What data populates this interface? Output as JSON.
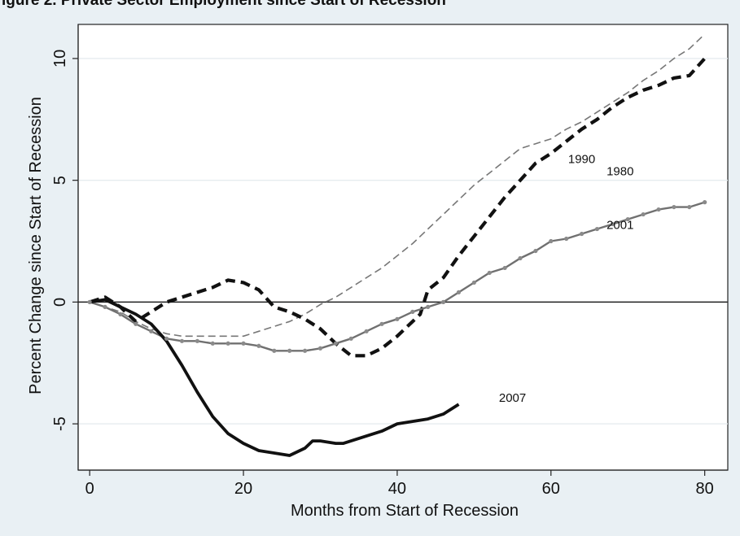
{
  "page": {
    "caption_fragment": "igure 2. Private Sector Employment since Start of Recession"
  },
  "chart_data": {
    "type": "line",
    "title": "",
    "xlabel": "Months from Start of Recession",
    "ylabel": "Percent Change since Start of Recession",
    "xlim": [
      -1.5,
      83
    ],
    "ylim": [
      -6.9,
      11.4
    ],
    "xticks": [
      0,
      20,
      40,
      60,
      80
    ],
    "xtick_labels": [
      "0",
      "20",
      "40",
      "60",
      "80"
    ],
    "yticks": [
      -5,
      0,
      5,
      10
    ],
    "ytick_labels": [
      "-5",
      "0",
      "5",
      "10"
    ],
    "grid": true,
    "legend": "none",
    "reference_line": {
      "y": 0
    },
    "series": [
      {
        "name": "1990",
        "color": "#777777",
        "style": "thin-dashed",
        "label_at": [
          64,
          5.7
        ],
        "x": [
          0,
          2,
          4,
          6,
          8,
          10,
          12,
          14,
          16,
          18,
          20,
          22,
          24,
          26,
          28,
          30,
          32,
          34,
          36,
          38,
          40,
          42,
          44,
          46,
          48,
          50,
          52,
          54,
          56,
          58,
          60,
          62,
          64,
          66,
          68,
          70,
          72,
          74,
          76,
          78,
          80
        ],
        "y": [
          0,
          -0.2,
          -0.4,
          -0.8,
          -1.1,
          -1.3,
          -1.4,
          -1.4,
          -1.4,
          -1.4,
          -1.4,
          -1.2,
          -1.0,
          -0.8,
          -0.5,
          -0.1,
          0.2,
          0.6,
          1.0,
          1.4,
          1.9,
          2.4,
          3.0,
          3.6,
          4.2,
          4.8,
          5.3,
          5.8,
          6.3,
          6.5,
          6.7,
          7.1,
          7.4,
          7.8,
          8.2,
          8.6,
          9.1,
          9.5,
          10.0,
          10.4,
          11.0
        ]
      },
      {
        "name": "1980",
        "color": "#111111",
        "style": "thick-dashed",
        "label_at": [
          69,
          5.2
        ],
        "x": [
          0,
          2,
          4,
          6,
          8,
          10,
          12,
          14,
          16,
          18,
          20,
          22,
          24,
          26,
          28,
          30,
          32,
          34,
          36,
          38,
          40,
          42,
          43,
          44,
          46,
          48,
          50,
          52,
          54,
          56,
          58,
          60,
          62,
          64,
          66,
          68,
          70,
          72,
          74,
          76,
          78,
          80
        ],
        "y": [
          0,
          0.2,
          -0.2,
          -0.8,
          -0.4,
          0.0,
          0.2,
          0.4,
          0.6,
          0.9,
          0.8,
          0.5,
          -0.2,
          -0.4,
          -0.7,
          -1.1,
          -1.7,
          -2.2,
          -2.2,
          -1.9,
          -1.4,
          -0.8,
          -0.5,
          0.5,
          1.0,
          1.9,
          2.7,
          3.5,
          4.3,
          5.0,
          5.7,
          6.1,
          6.6,
          7.1,
          7.5,
          8.0,
          8.4,
          8.7,
          8.9,
          9.2,
          9.3,
          10.0
        ]
      },
      {
        "name": "2001",
        "color": "#707070",
        "style": "dotted-markers",
        "label_at": [
          69,
          3.0
        ],
        "x": [
          0,
          2,
          4,
          6,
          8,
          10,
          12,
          14,
          16,
          18,
          20,
          22,
          24,
          26,
          28,
          30,
          32,
          34,
          36,
          38,
          40,
          42,
          44,
          46,
          48,
          50,
          52,
          54,
          56,
          58,
          60,
          62,
          64,
          66,
          68,
          70,
          72,
          74,
          76,
          78,
          80
        ],
        "y": [
          0,
          -0.2,
          -0.5,
          -0.9,
          -1.2,
          -1.5,
          -1.6,
          -1.6,
          -1.7,
          -1.7,
          -1.7,
          -1.8,
          -2.0,
          -2.0,
          -2.0,
          -1.9,
          -1.7,
          -1.5,
          -1.2,
          -0.9,
          -0.7,
          -0.4,
          -0.2,
          0.0,
          0.4,
          0.8,
          1.2,
          1.4,
          1.8,
          2.1,
          2.5,
          2.6,
          2.8,
          3.0,
          3.2,
          3.4,
          3.6,
          3.8,
          3.9,
          3.9,
          4.1
        ]
      },
      {
        "name": "2007",
        "color": "#111111",
        "style": "thick-solid",
        "label_at": [
          55,
          -4.1
        ],
        "x": [
          0,
          2,
          4,
          6,
          8,
          10,
          12,
          14,
          16,
          18,
          20,
          22,
          24,
          26,
          28,
          29,
          30,
          32,
          33,
          34,
          36,
          38,
          40,
          42,
          44,
          46,
          48
        ],
        "y": [
          0,
          0.1,
          -0.2,
          -0.5,
          -0.9,
          -1.6,
          -2.6,
          -3.7,
          -4.7,
          -5.4,
          -5.8,
          -6.1,
          -6.2,
          -6.3,
          -6.0,
          -5.7,
          -5.7,
          -5.8,
          -5.8,
          -5.7,
          -5.5,
          -5.3,
          -5.0,
          -4.9,
          -4.8,
          -4.6,
          -4.2
        ]
      }
    ]
  }
}
